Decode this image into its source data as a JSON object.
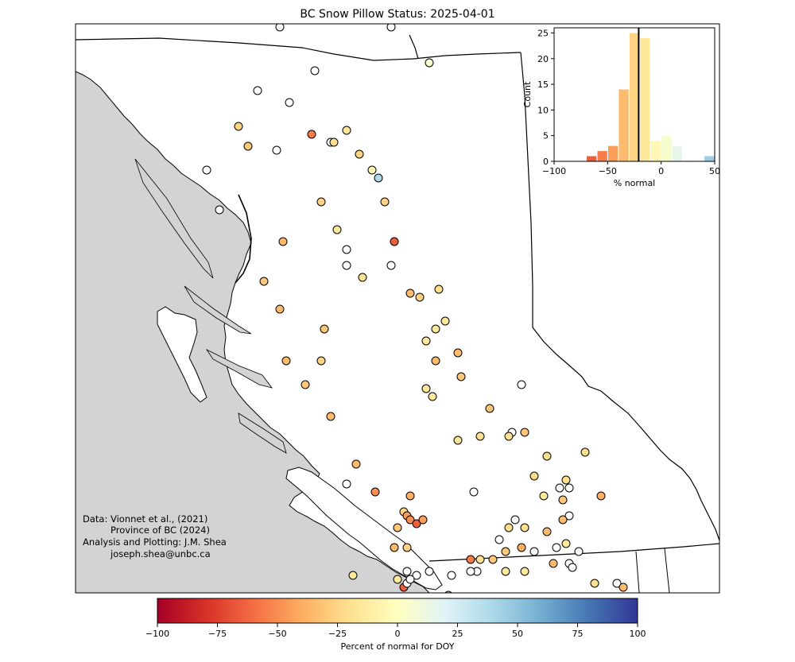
{
  "title": "BC Snow Pillow Status: 2025-04-01",
  "credits": [
    "Data: Vionnet et al., (2021)",
    "Province of BC (2024)",
    "Analysis and Plotting: J.M. Shea",
    "joseph.shea@unbc.ca"
  ],
  "colorbar": {
    "label": "Percent of normal for DOY",
    "min": -100,
    "max": 100,
    "ticks": [
      "−100",
      "−75",
      "−50",
      "−25",
      "0",
      "25",
      "50",
      "75",
      "100"
    ],
    "colormap": "RdYlBu"
  },
  "colors": {
    "land": "#ffffff",
    "ocean": "#d3d3d3",
    "no_data_marker": "#ffffff",
    "median_line": "#000000"
  },
  "chart_data": {
    "type": "bar",
    "xlabel": "% normal",
    "ylabel": "Count",
    "xlim": [
      -100,
      50
    ],
    "ylim": [
      0,
      26
    ],
    "x_ticks": [
      "−100",
      "−50",
      "0",
      "50"
    ],
    "y_ticks": [
      "0",
      "5",
      "10",
      "15",
      "20",
      "25"
    ],
    "bin_width": 10,
    "bins": [
      {
        "start": -70,
        "count": 1
      },
      {
        "start": -60,
        "count": 2
      },
      {
        "start": -50,
        "count": 3
      },
      {
        "start": -40,
        "count": 14
      },
      {
        "start": -30,
        "count": 25
      },
      {
        "start": -20,
        "count": 24
      },
      {
        "start": -10,
        "count": 4
      },
      {
        "start": 0,
        "count": 5
      },
      {
        "start": 10,
        "count": 3
      },
      {
        "start": 40,
        "count": 1
      }
    ],
    "median_line_x": -21
  },
  "stations": [
    {
      "lon": -128.2,
      "lat": 59.3,
      "v": null
    },
    {
      "lon": -124.7,
      "lat": 59.3,
      "v": null
    },
    {
      "lon": -124.0,
      "lat": 59.45,
      "v": 40
    },
    {
      "lon": -123.5,
      "lat": 58.85,
      "v": 5
    },
    {
      "lon": -128.9,
      "lat": 58.5,
      "v": null
    },
    {
      "lon": -127.1,
      "lat": 58.75,
      "v": null
    },
    {
      "lon": -127.9,
      "lat": 58.35,
      "v": null
    },
    {
      "lon": -129.5,
      "lat": 58.05,
      "v": -25
    },
    {
      "lon": -129.2,
      "lat": 57.8,
      "v": -30
    },
    {
      "lon": -128.3,
      "lat": 57.75,
      "v": null
    },
    {
      "lon": -127.2,
      "lat": 57.95,
      "v": -55
    },
    {
      "lon": -126.6,
      "lat": 57.85,
      "v": null
    },
    {
      "lon": -126.5,
      "lat": 57.85,
      "v": -20
    },
    {
      "lon": -126.1,
      "lat": 58.0,
      "v": -15
    },
    {
      "lon": -125.7,
      "lat": 57.7,
      "v": -25
    },
    {
      "lon": -125.3,
      "lat": 57.5,
      "v": -5
    },
    {
      "lon": -125.1,
      "lat": 57.4,
      "v": 40
    },
    {
      "lon": -124.9,
      "lat": 57.1,
      "v": -25
    },
    {
      "lon": -130.5,
      "lat": 57.5,
      "v": null
    },
    {
      "lon": -130.1,
      "lat": 57.0,
      "v": null
    },
    {
      "lon": -126.9,
      "lat": 57.1,
      "v": -25
    },
    {
      "lon": -126.4,
      "lat": 56.75,
      "v": -15
    },
    {
      "lon": -128.1,
      "lat": 56.6,
      "v": -35
    },
    {
      "lon": -126.1,
      "lat": 56.5,
      "v": null
    },
    {
      "lon": -126.1,
      "lat": 56.3,
      "v": null
    },
    {
      "lon": -124.6,
      "lat": 56.6,
      "v": -65
    },
    {
      "lon": -124.7,
      "lat": 56.3,
      "v": null
    },
    {
      "lon": -125.6,
      "lat": 56.15,
      "v": -20
    },
    {
      "lon": -128.7,
      "lat": 56.1,
      "v": -30
    },
    {
      "lon": -124.1,
      "lat": 55.95,
      "v": -35
    },
    {
      "lon": -123.8,
      "lat": 55.9,
      "v": -25
    },
    {
      "lon": -123.2,
      "lat": 56.0,
      "v": -20
    },
    {
      "lon": -128.2,
      "lat": 55.75,
      "v": -35
    },
    {
      "lon": -123.0,
      "lat": 55.6,
      "v": -15
    },
    {
      "lon": -123.3,
      "lat": 55.5,
      "v": -15
    },
    {
      "lon": -123.6,
      "lat": 55.35,
      "v": -15
    },
    {
      "lon": -126.8,
      "lat": 55.5,
      "v": -30
    },
    {
      "lon": -122.6,
      "lat": 55.2,
      "v": -35
    },
    {
      "lon": -123.3,
      "lat": 55.1,
      "v": -35
    },
    {
      "lon": -126.9,
      "lat": 55.1,
      "v": -25
    },
    {
      "lon": -128.0,
      "lat": 55.1,
      "v": -35
    },
    {
      "lon": -122.5,
      "lat": 54.9,
      "v": -30
    },
    {
      "lon": -127.4,
      "lat": 54.8,
      "v": -30
    },
    {
      "lon": -123.6,
      "lat": 54.75,
      "v": -15
    },
    {
      "lon": -123.4,
      "lat": 54.65,
      "v": -15
    },
    {
      "lon": -120.6,
      "lat": 54.8,
      "v": null
    },
    {
      "lon": -121.6,
      "lat": 54.5,
      "v": -30
    },
    {
      "lon": -126.6,
      "lat": 54.4,
      "v": -35
    },
    {
      "lon": -120.9,
      "lat": 54.2,
      "v": null
    },
    {
      "lon": -121.0,
      "lat": 54.15,
      "v": -20
    },
    {
      "lon": -120.5,
      "lat": 54.2,
      "v": -30
    },
    {
      "lon": -121.9,
      "lat": 54.15,
      "v": -20
    },
    {
      "lon": -122.6,
      "lat": 54.1,
      "v": -15
    },
    {
      "lon": -119.8,
      "lat": 53.9,
      "v": -20
    },
    {
      "lon": -118.6,
      "lat": 53.95,
      "v": -20
    },
    {
      "lon": -125.8,
      "lat": 53.8,
      "v": -35
    },
    {
      "lon": -120.2,
      "lat": 53.65,
      "v": -20
    },
    {
      "lon": -119.2,
      "lat": 53.6,
      "v": -20
    },
    {
      "lon": -126.1,
      "lat": 53.55,
      "v": null
    },
    {
      "lon": -125.2,
      "lat": 53.45,
      "v": -50
    },
    {
      "lon": -119.4,
      "lat": 53.5,
      "v": null
    },
    {
      "lon": -119.1,
      "lat": 53.5,
      "v": null
    },
    {
      "lon": -119.9,
      "lat": 53.4,
      "v": -15
    },
    {
      "lon": -119.3,
      "lat": 53.35,
      "v": -30
    },
    {
      "lon": -118.1,
      "lat": 53.4,
      "v": -40
    },
    {
      "lon": -122.1,
      "lat": 53.45,
      "v": null
    },
    {
      "lon": -124.1,
      "lat": 53.4,
      "v": -40
    },
    {
      "lon": -124.3,
      "lat": 53.2,
      "v": -25
    },
    {
      "lon": -124.2,
      "lat": 53.15,
      "v": -45
    },
    {
      "lon": -124.1,
      "lat": 53.1,
      "v": -50
    },
    {
      "lon": -123.9,
      "lat": 53.05,
      "v": -65
    },
    {
      "lon": -123.7,
      "lat": 53.1,
      "v": -45
    },
    {
      "lon": -124.5,
      "lat": 53.0,
      "v": -30
    },
    {
      "lon": -119.1,
      "lat": 53.15,
      "v": null
    },
    {
      "lon": -120.8,
      "lat": 53.1,
      "v": null
    },
    {
      "lon": -119.3,
      "lat": 53.1,
      "v": -35
    },
    {
      "lon": -121.0,
      "lat": 53.0,
      "v": -20
    },
    {
      "lon": -120.5,
      "lat": 53.0,
      "v": -20
    },
    {
      "lon": -119.8,
      "lat": 52.95,
      "v": -35
    },
    {
      "lon": -121.3,
      "lat": 52.85,
      "v": null
    },
    {
      "lon": -124.6,
      "lat": 52.75,
      "v": -35
    },
    {
      "lon": -124.2,
      "lat": 52.75,
      "v": -25
    },
    {
      "lon": -121.1,
      "lat": 52.7,
      "v": -30
    },
    {
      "lon": -120.6,
      "lat": 52.75,
      "v": -40
    },
    {
      "lon": -119.5,
      "lat": 52.75,
      "v": null
    },
    {
      "lon": -119.2,
      "lat": 52.8,
      "v": -15
    },
    {
      "lon": -118.8,
      "lat": 52.7,
      "v": null
    },
    {
      "lon": -120.2,
      "lat": 52.7,
      "v": null
    },
    {
      "lon": -122.2,
      "lat": 52.6,
      "v": -55
    },
    {
      "lon": -121.9,
      "lat": 52.6,
      "v": -20
    },
    {
      "lon": -121.5,
      "lat": 52.6,
      "v": -30
    },
    {
      "lon": -119.6,
      "lat": 52.55,
      "v": -35
    },
    {
      "lon": -119.1,
      "lat": 52.55,
      "v": null
    },
    {
      "lon": -119.0,
      "lat": 52.5,
      "v": null
    },
    {
      "lon": -122.0,
      "lat": 52.45,
      "v": null
    },
    {
      "lon": -122.2,
      "lat": 52.45,
      "v": null
    },
    {
      "lon": -121.1,
      "lat": 52.45,
      "v": -15
    },
    {
      "lon": -120.5,
      "lat": 52.45,
      "v": -15
    },
    {
      "lon": -122.8,
      "lat": 52.4,
      "v": null
    },
    {
      "lon": -123.5,
      "lat": 52.45,
      "v": null
    },
    {
      "lon": -123.9,
      "lat": 52.4,
      "v": null
    },
    {
      "lon": -124.2,
      "lat": 52.45,
      "v": null
    },
    {
      "lon": -125.9,
      "lat": 52.4,
      "v": -15
    },
    {
      "lon": -124.5,
      "lat": 52.35,
      "v": -15
    },
    {
      "lon": -124.3,
      "lat": 52.25,
      "v": -65
    },
    {
      "lon": -124.2,
      "lat": 52.3,
      "v": null
    },
    {
      "lon": -124.1,
      "lat": 52.35,
      "v": null
    },
    {
      "lon": -122.9,
      "lat": 52.15,
      "v": -40
    },
    {
      "lon": -122.0,
      "lat": 52.05,
      "v": -40
    },
    {
      "lon": -125.1,
      "lat": 52.1,
      "v": -20
    },
    {
      "lon": -125.4,
      "lat": 51.95,
      "v": -30
    },
    {
      "lon": -125.2,
      "lat": 51.95,
      "v": -30
    },
    {
      "lon": -123.1,
      "lat": 51.95,
      "v": null
    },
    {
      "lon": -124.3,
      "lat": 51.75,
      "v": null
    },
    {
      "lon": -117.6,
      "lat": 52.3,
      "v": null
    },
    {
      "lon": -117.4,
      "lat": 52.25,
      "v": -35
    },
    {
      "lon": -118.3,
      "lat": 52.3,
      "v": -20
    }
  ]
}
